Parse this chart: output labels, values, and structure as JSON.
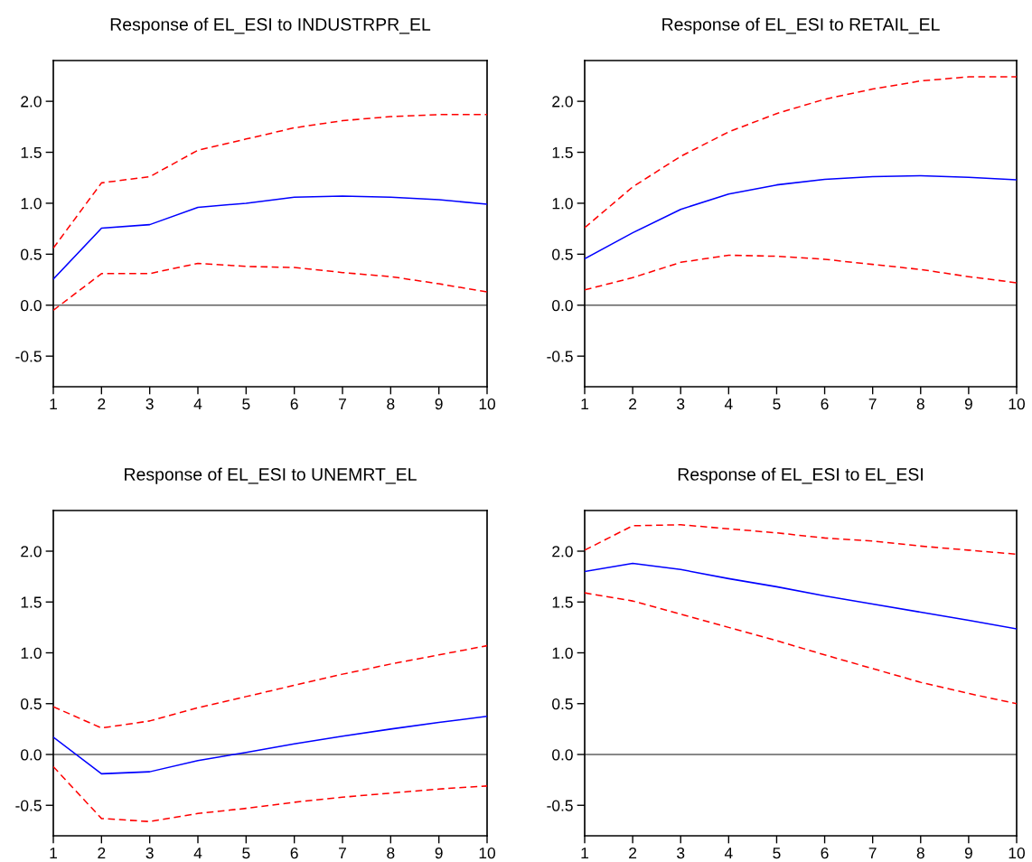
{
  "chart_data": [
    {
      "type": "line",
      "title": "Response of EL_ESI to INDUSTRPR_EL",
      "x": [
        1,
        2,
        3,
        4,
        5,
        6,
        7,
        8,
        9,
        10
      ],
      "xlim": [
        1,
        10
      ],
      "xticks": [
        1,
        2,
        3,
        4,
        5,
        6,
        7,
        8,
        9,
        10
      ],
      "ylim": [
        -0.8,
        2.4
      ],
      "yticks": [
        {
          "value": -0.5,
          "label": "-0.5"
        },
        {
          "value": 0,
          "label": "0.0"
        },
        {
          "value": 0.5,
          "label": "0.5"
        },
        {
          "value": 1,
          "label": "1.0"
        },
        {
          "value": 1.5,
          "label": "1.5"
        },
        {
          "value": 2,
          "label": "2.0"
        }
      ],
      "grid": false,
      "legend": false,
      "ref_lines": [
        {
          "axis": "y",
          "value": 0,
          "color": "#606060",
          "line_style": "solid"
        }
      ],
      "series": [
        {
          "color": "#0000ff",
          "line_style": "solid",
          "values": [
            0.255,
            0.755,
            0.79,
            0.96,
            1.0,
            1.06,
            1.07,
            1.06,
            1.035,
            0.99
          ]
        },
        {
          "color": "#ff0000",
          "line_style": "dashed",
          "values": [
            0.56,
            1.2,
            1.26,
            1.52,
            1.63,
            1.74,
            1.81,
            1.85,
            1.87,
            1.87
          ]
        },
        {
          "color": "#ff0000",
          "line_style": "dashed",
          "values": [
            -0.05,
            0.31,
            0.31,
            0.41,
            0.38,
            0.37,
            0.32,
            0.28,
            0.21,
            0.13
          ]
        }
      ]
    },
    {
      "type": "line",
      "title": "Response of EL_ESI to RETAIL_EL",
      "x": [
        1,
        2,
        3,
        4,
        5,
        6,
        7,
        8,
        9,
        10
      ],
      "xlim": [
        1,
        10
      ],
      "xticks": [
        1,
        2,
        3,
        4,
        5,
        6,
        7,
        8,
        9,
        10
      ],
      "ylim": [
        -0.8,
        2.4
      ],
      "yticks": [
        {
          "value": -0.5,
          "label": "-0.5"
        },
        {
          "value": 0,
          "label": "0.0"
        },
        {
          "value": 0.5,
          "label": "0.5"
        },
        {
          "value": 1,
          "label": "1.0"
        },
        {
          "value": 1.5,
          "label": "1.5"
        },
        {
          "value": 2,
          "label": "2.0"
        }
      ],
      "grid": false,
      "legend": false,
      "ref_lines": [
        {
          "axis": "y",
          "value": 0,
          "color": "#606060",
          "line_style": "solid"
        }
      ],
      "series": [
        {
          "color": "#0000ff",
          "line_style": "solid",
          "values": [
            0.455,
            0.71,
            0.94,
            1.09,
            1.18,
            1.235,
            1.26,
            1.27,
            1.255,
            1.23
          ]
        },
        {
          "color": "#ff0000",
          "line_style": "dashed",
          "values": [
            0.76,
            1.16,
            1.46,
            1.7,
            1.88,
            2.02,
            2.12,
            2.2,
            2.24,
            2.24
          ]
        },
        {
          "color": "#ff0000",
          "line_style": "dashed",
          "values": [
            0.15,
            0.27,
            0.42,
            0.49,
            0.48,
            0.45,
            0.4,
            0.35,
            0.28,
            0.22
          ]
        }
      ]
    },
    {
      "type": "line",
      "title": "Response of EL_ESI to UNEMRT_EL",
      "x": [
        1,
        2,
        3,
        4,
        5,
        6,
        7,
        8,
        9,
        10
      ],
      "xlim": [
        1,
        10
      ],
      "xticks": [
        1,
        2,
        3,
        4,
        5,
        6,
        7,
        8,
        9,
        10
      ],
      "ylim": [
        -0.8,
        2.4
      ],
      "yticks": [
        {
          "value": -0.5,
          "label": "-0.5"
        },
        {
          "value": 0,
          "label": "0.0"
        },
        {
          "value": 0.5,
          "label": "0.5"
        },
        {
          "value": 1,
          "label": "1.0"
        },
        {
          "value": 1.5,
          "label": "1.5"
        },
        {
          "value": 2,
          "label": "2.0"
        }
      ],
      "grid": false,
      "legend": false,
      "ref_lines": [
        {
          "axis": "y",
          "value": 0,
          "color": "#606060",
          "line_style": "solid"
        }
      ],
      "series": [
        {
          "color": "#0000ff",
          "line_style": "solid",
          "values": [
            0.17,
            -0.19,
            -0.17,
            -0.06,
            0.02,
            0.105,
            0.18,
            0.25,
            0.315,
            0.375
          ]
        },
        {
          "color": "#ff0000",
          "line_style": "dashed",
          "values": [
            0.47,
            0.26,
            0.33,
            0.46,
            0.57,
            0.68,
            0.79,
            0.89,
            0.98,
            1.07
          ]
        },
        {
          "color": "#ff0000",
          "line_style": "dashed",
          "values": [
            -0.12,
            -0.63,
            -0.66,
            -0.58,
            -0.53,
            -0.47,
            -0.42,
            -0.38,
            -0.34,
            -0.31
          ]
        }
      ]
    },
    {
      "type": "line",
      "title": "Response of EL_ESI to EL_ESI",
      "x": [
        1,
        2,
        3,
        4,
        5,
        6,
        7,
        8,
        9,
        10
      ],
      "xlim": [
        1,
        10
      ],
      "xticks": [
        1,
        2,
        3,
        4,
        5,
        6,
        7,
        8,
        9,
        10
      ],
      "ylim": [
        -0.8,
        2.4
      ],
      "yticks": [
        {
          "value": -0.5,
          "label": "-0.5"
        },
        {
          "value": 0,
          "label": "0.0"
        },
        {
          "value": 0.5,
          "label": "0.5"
        },
        {
          "value": 1,
          "label": "1.0"
        },
        {
          "value": 1.5,
          "label": "1.5"
        },
        {
          "value": 2,
          "label": "2.0"
        }
      ],
      "grid": false,
      "legend": false,
      "ref_lines": [
        {
          "axis": "y",
          "value": 0,
          "color": "#606060",
          "line_style": "solid"
        }
      ],
      "series": [
        {
          "color": "#0000ff",
          "line_style": "solid",
          "values": [
            1.8,
            1.88,
            1.82,
            1.73,
            1.65,
            1.56,
            1.48,
            1.4,
            1.32,
            1.235
          ]
        },
        {
          "color": "#ff0000",
          "line_style": "dashed",
          "values": [
            2.01,
            2.25,
            2.26,
            2.22,
            2.18,
            2.13,
            2.1,
            2.05,
            2.01,
            1.97
          ]
        },
        {
          "color": "#ff0000",
          "line_style": "dashed",
          "values": [
            1.59,
            1.51,
            1.38,
            1.25,
            1.12,
            0.98,
            0.845,
            0.71,
            0.6,
            0.5
          ]
        }
      ]
    }
  ]
}
